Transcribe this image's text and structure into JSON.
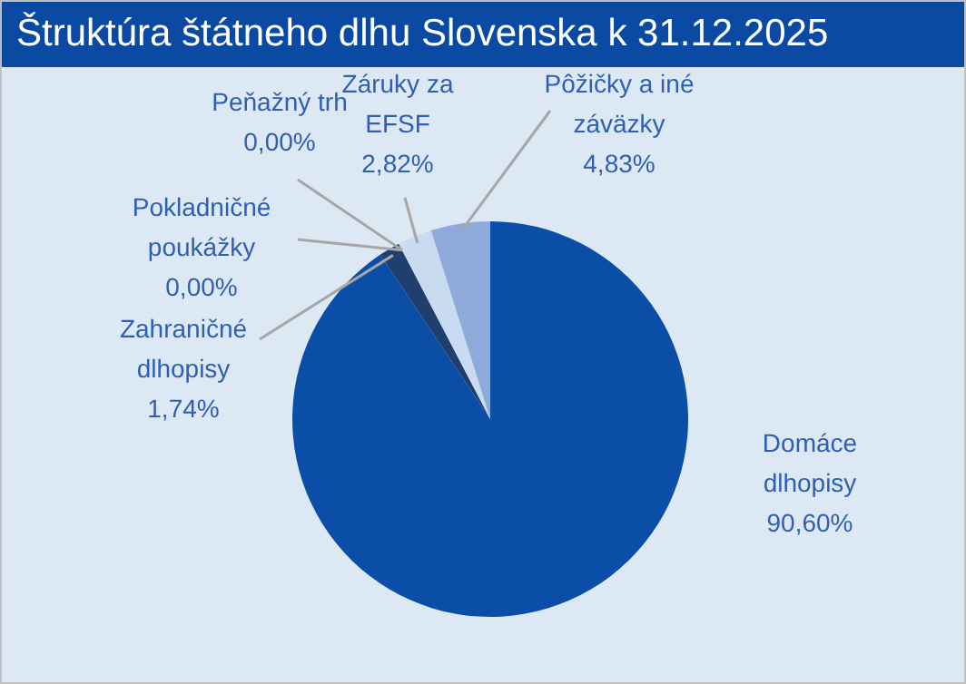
{
  "chart_data": {
    "type": "pie",
    "title": "Štruktúra štátneho dlhu Slovenska k 31.12.2025",
    "categories": [
      "Domáce dlhopisy",
      "Zahraničné dlhopisy",
      "Pokladničné poukážky",
      "Peňažný trh",
      "Záruky za EFSF",
      "Pôžičky a iné záväzky"
    ],
    "values": [
      90.6,
      1.74,
      0,
      0,
      2.82,
      4.83
    ],
    "value_labels": [
      "90,60%",
      "1,74%",
      "0,00%",
      "0,00%",
      "2,82%",
      "4,83%"
    ],
    "colors": [
      "#0b4ea8",
      "#1f3f6e",
      "#2e5fa8",
      "#5b87c8",
      "#c9dbf0",
      "#8eaadb"
    ]
  }
}
